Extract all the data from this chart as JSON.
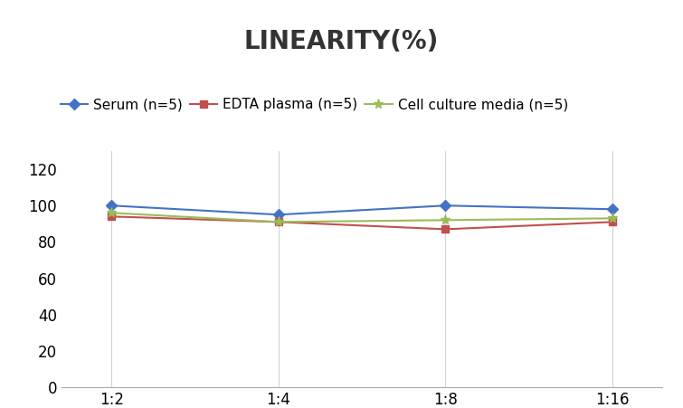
{
  "title": "LINEARITY(%)",
  "x_labels": [
    "1:2",
    "1:4",
    "1:8",
    "1:16"
  ],
  "x_positions": [
    0,
    1,
    2,
    3
  ],
  "series": [
    {
      "label": "Serum (n=5)",
      "values": [
        100,
        95,
        100,
        98
      ],
      "color": "#4472C4",
      "marker": "D",
      "markersize": 6
    },
    {
      "label": "EDTA plasma (n=5)",
      "values": [
        94,
        91,
        87,
        91
      ],
      "color": "#C0504D",
      "marker": "s",
      "markersize": 6
    },
    {
      "label": "Cell culture media (n=5)",
      "values": [
        96,
        91,
        92,
        93
      ],
      "color": "#9BBB59",
      "marker": "*",
      "markersize": 8
    }
  ],
  "ylim": [
    0,
    130
  ],
  "yticks": [
    0,
    20,
    40,
    60,
    80,
    100,
    120
  ],
  "background_color": "#FFFFFF",
  "grid_color": "#D3D3D3",
  "title_fontsize": 20,
  "legend_fontsize": 11,
  "tick_fontsize": 12
}
